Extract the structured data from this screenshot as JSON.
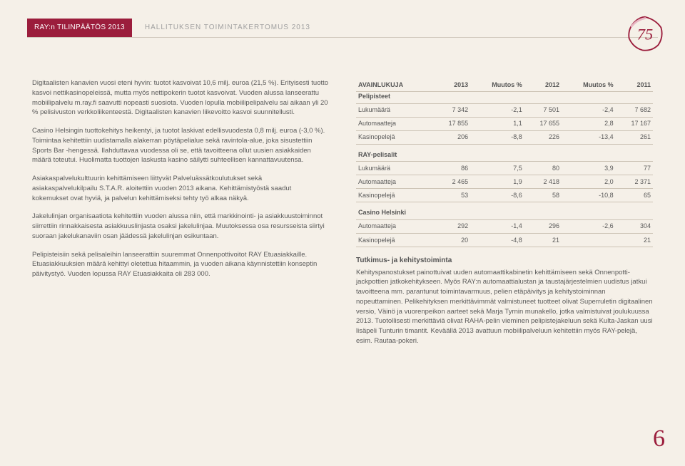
{
  "header": {
    "ray_box": "RAY:n TILINPÄÄTÖS 2013",
    "hallitus": "HALLITUKSEN TOIMINTAKERTOMUS 2013",
    "badge": {
      "number": "75",
      "color": "#9b1d3c",
      "accent": "#e8b8c4"
    }
  },
  "left_column": {
    "p1": "Digitaalisten kanavien vuosi eteni hyvin: tuotot kasvoivat 10,6 milj. euroa (21,5 %). Erityisesti tuotto kasvoi nettikasinopeleissä, mutta myös nettipokerin tuotot kasvoivat. Vuoden alussa lanseerattu mobiilipalvelu m.ray.fi saavutti nopeasti suosiota. Vuoden lopulla mobiilipelipalvelu sai aikaan yli 20 % pelisivuston verkkoliikenteestä. Digitaalisten kanavien liikevoitto kasvoi suunnitellusti.",
    "p2": "Casino Helsingin tuottokehitys heikentyi, ja tuotot laskivat edellisvuodesta 0,8 milj. euroa (-3,0 %). Toimintaa kehitettiin uudistamalla alakerran pöytäpelialue sekä ravintola-alue, joka sisustettiin Sports Bar -hengessä. Ilahduttavaa vuodessa oli se, että tavoitteena ollut uusien asiakkaiden määrä toteutui. Huolimatta tuottojen laskusta kasino säilytti suhteellisen kannattavuutensa.",
    "p3": "Asiakaspalvelukulttuurin kehittämiseen liittyvät Palveluässätkoulutukset sekä asiakaspalvelukilpailu S.T.A.R. aloitettiin vuoden 2013 aikana. Kehittämistyöstä saadut kokemukset ovat hyviä, ja palvelun kehittämiseksi tehty työ alkaa näkyä.",
    "p4": "Jakelulinjan organisaatiota kehitettiin vuoden alussa niin, että markkinointi- ja asiakkuustoiminnot siirrettiin rinnakkaisesta asiakkuuslinjasta osaksi jakelulinjaa. Muutoksessa osa resursseista siirtyi suoraan jakelukanaviin osan jäädessä jakelulinjan esikuntaan.",
    "p5": "Pelipisteisiin sekä pelisaleihin lanseerattiin suuremmat Onnenpottivoitot RAY Etuasiakkaille. Etuasiakkuuksien määrä kehittyi oletettua hitaammin, ja vuoden aikana käynnistettiin konseptin päivitystyö. Vuoden lopussa RAY Etuasiakkaita oli 283 000."
  },
  "table": {
    "columns": [
      "AVAINLUKUJA",
      "2013",
      "Muutos %",
      "2012",
      "Muutos %",
      "2011"
    ],
    "sections": [
      {
        "title": "Pelipisteet",
        "rows": [
          [
            "Lukumäärä",
            "7 342",
            "-2,1",
            "7 501",
            "-2,4",
            "7 682"
          ],
          [
            "Automaatteja",
            "17 855",
            "1,1",
            "17 655",
            "2,8",
            "17 167"
          ],
          [
            "Kasinopelejä",
            "206",
            "-8,8",
            "226",
            "-13,4",
            "261"
          ]
        ]
      },
      {
        "title": "RAY-pelisalit",
        "rows": [
          [
            "Lukumäärä",
            "86",
            "7,5",
            "80",
            "3,9",
            "77"
          ],
          [
            "Automaatteja",
            "2 465",
            "1,9",
            "2 418",
            "2,0",
            "2 371"
          ],
          [
            "Kasinopelejä",
            "53",
            "-8,6",
            "58",
            "-10,8",
            "65"
          ]
        ]
      },
      {
        "title": "Casino Helsinki",
        "rows": [
          [
            "Automaatteja",
            "292",
            "-1,4",
            "296",
            "-2,6",
            "304"
          ],
          [
            "Kasinopelejä",
            "20",
            "-4,8",
            "21",
            "",
            "21"
          ]
        ]
      }
    ]
  },
  "right_text": {
    "heading": "Tutkimus- ja kehitystoiminta",
    "body": "Kehityspanostukset painottuivat uuden automaattikabinetin kehittämiseen sekä Onnenpotti-jackpottien jatkokehitykseen. Myös RAY:n automaattialustan ja taustajärjestelmien uudistus jatkui tavoitteena mm. parantunut toimintavarmuus, pelien etäpäivitys ja kehitystoiminnan nopeuttaminen. Pelikehityksen merkittävimmät valmistuneet tuotteet olivat Superruletin digitaalinen versio, Väinö ja vuorenpeikon aarteet sekä Marja Tyrnin munakello, jotka valmistuivat joulukuussa 2013. Tuotollisesti merkittäviä olivat RAHA-pelin vieminen pelipistejakeluun sekä Kulta-Jaskan uusi lisäpeli Tunturin timantit. Keväällä 2013 avattuun mobiilipalveluun kehitettiin myös RAY-pelejä, esim. Rautaa-pokeri."
  },
  "page_number": "6",
  "colors": {
    "background": "#f5f0e8",
    "accent": "#9b1d3c",
    "text": "#5a5a5a",
    "rule": "#ccc3b5"
  }
}
